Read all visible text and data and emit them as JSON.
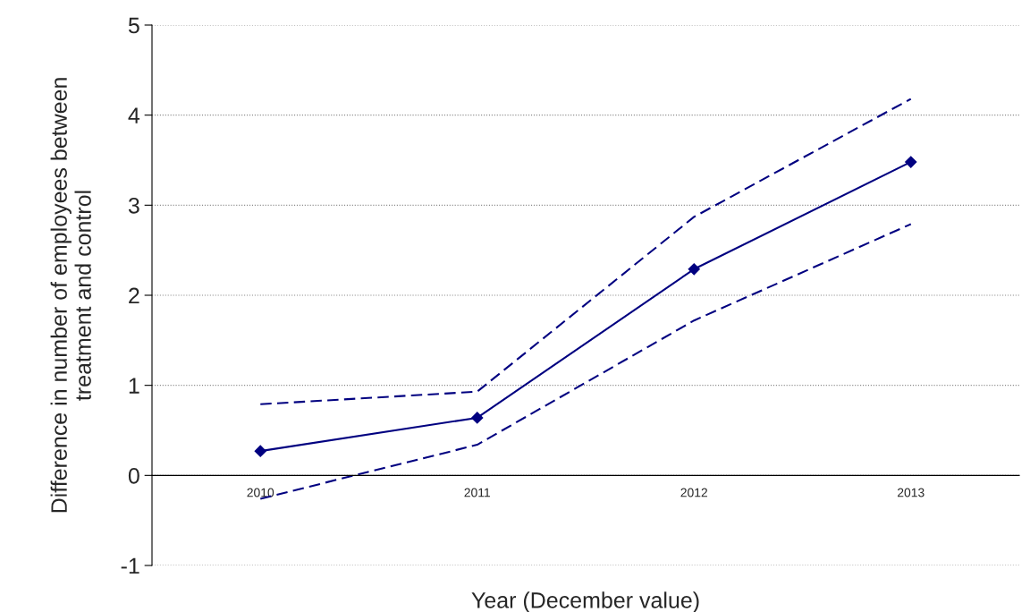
{
  "chart_data": {
    "type": "line",
    "xlabel": "Year (December value)",
    "ylabel": "Difference in number of employees between\ntreatment and control",
    "categories": [
      "2010",
      "2011",
      "2012",
      "2013"
    ],
    "series": [
      {
        "color": "#000080",
        "values": [
          0.27,
          0.64,
          2.29,
          3.48
        ],
        "marker": "diamond",
        "line_style": "solid"
      },
      {
        "color": "#000080",
        "values": [
          0.79,
          0.93,
          2.87,
          4.18
        ],
        "marker": "none",
        "line_style": "dashed"
      },
      {
        "color": "#000080",
        "values": [
          -0.26,
          0.34,
          1.72,
          2.79
        ],
        "marker": "none",
        "line_style": "dashed"
      }
    ],
    "ylim": [
      -1,
      5
    ],
    "yticks": [
      {
        "value": -1,
        "label": "-1"
      },
      0,
      1,
      2,
      3,
      4,
      5
    ],
    "grid": "y"
  }
}
